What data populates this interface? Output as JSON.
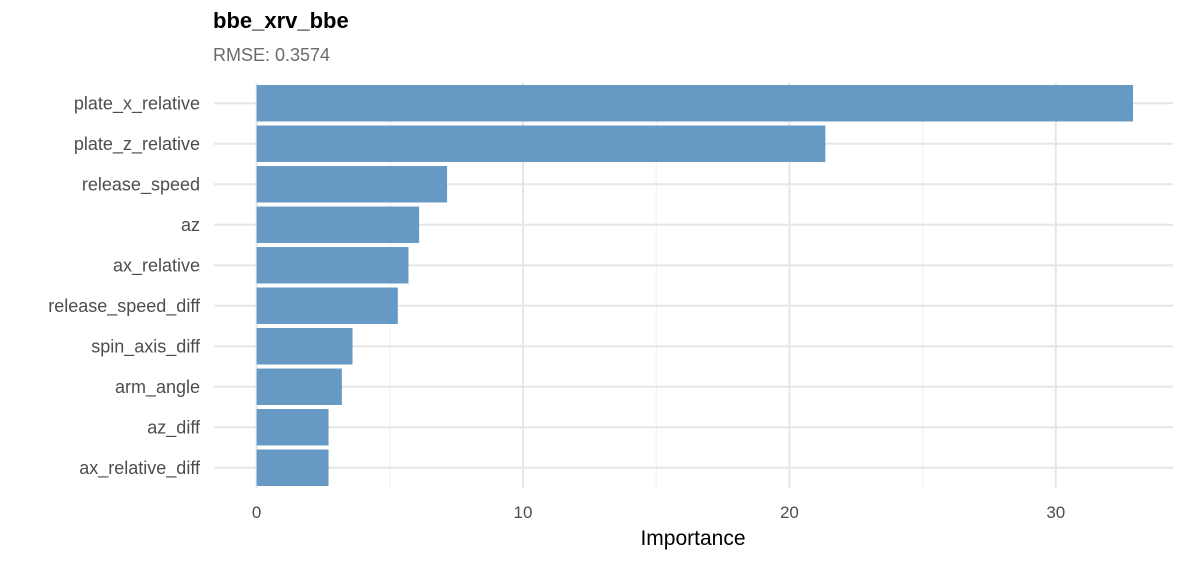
{
  "chart_data": {
    "type": "bar",
    "orientation": "horizontal",
    "title": "bbe_xrv_bbe",
    "subtitle": "RMSE: 0.3574",
    "xlabel": "Importance",
    "ylabel": "",
    "categories": [
      "plate_x_relative",
      "plate_z_relative",
      "release_speed",
      "az",
      "ax_relative",
      "release_speed_diff",
      "spin_axis_diff",
      "arm_angle",
      "az_diff",
      "ax_relative_diff"
    ],
    "values": [
      32.9,
      21.35,
      7.15,
      6.1,
      5.7,
      5.3,
      3.6,
      3.2,
      2.7,
      2.7
    ],
    "xlim": [
      -1.6,
      34.4
    ],
    "xticks": [
      0,
      10,
      20,
      30
    ],
    "grid": true,
    "legend": "none",
    "bar_color": "#6699C4"
  }
}
